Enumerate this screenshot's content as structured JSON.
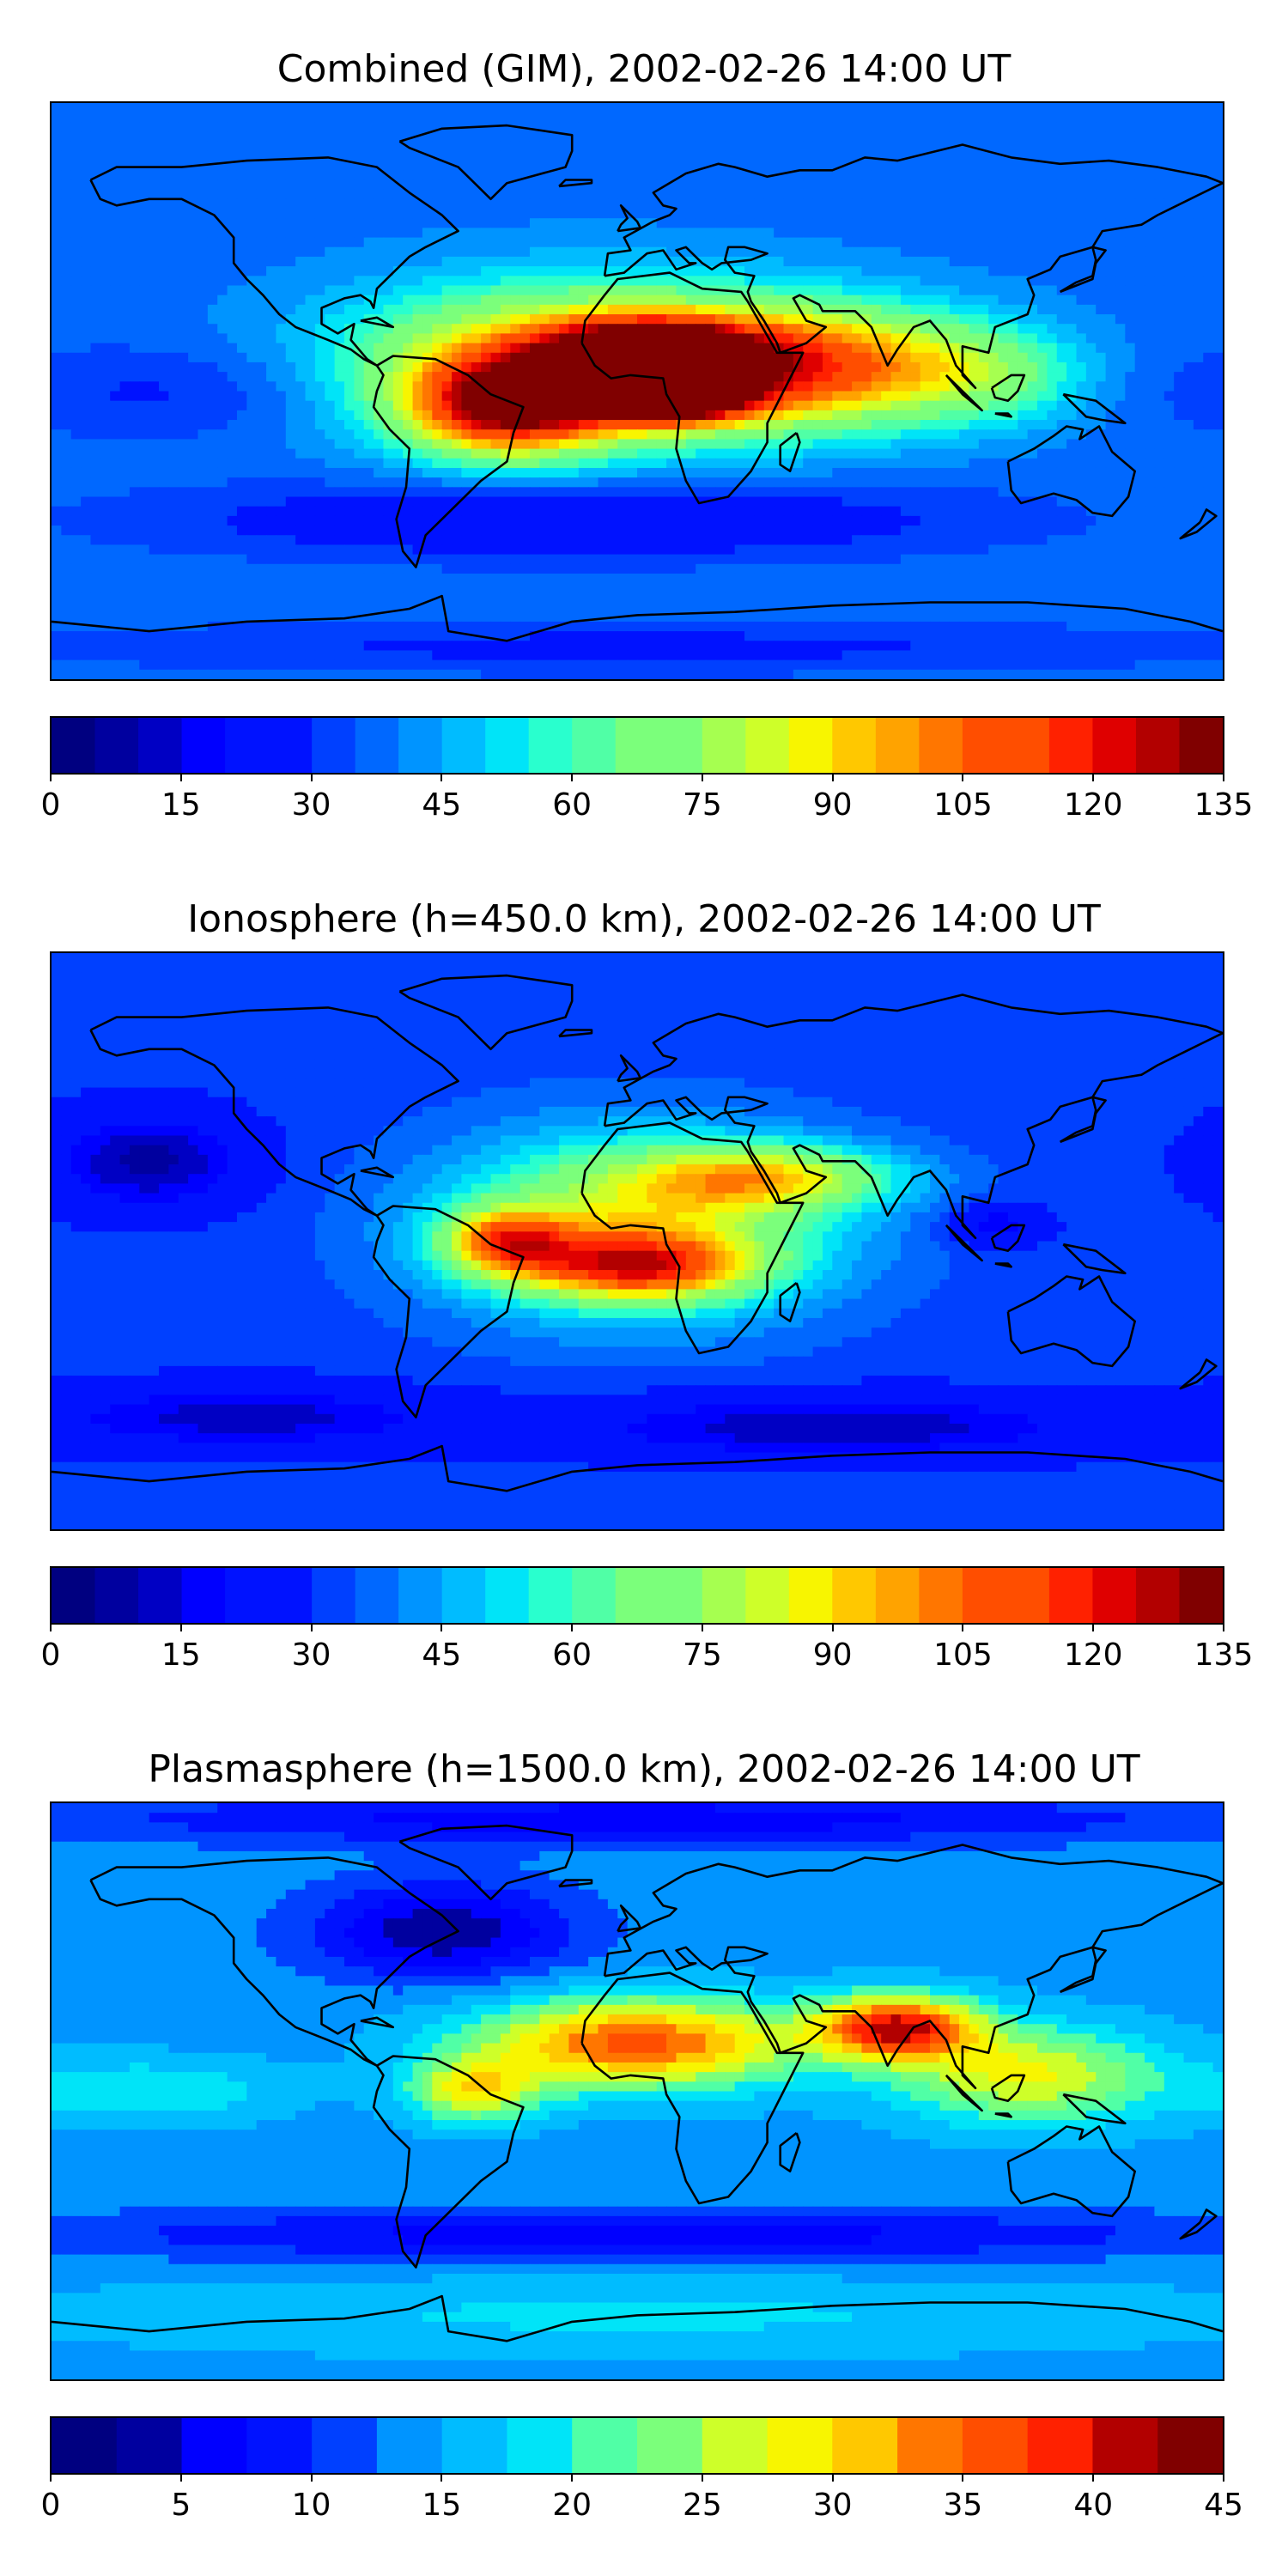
{
  "colors": {
    "jet": [
      "#000080",
      "#00009f",
      "#0000c4",
      "#0000ff",
      "#0012ff",
      "#0040ff",
      "#0068ff",
      "#0094ff",
      "#00bcff",
      "#00e4f8",
      "#29ffce",
      "#50ffa6",
      "#7bff7b",
      "#a6ff50",
      "#ceff29",
      "#f8f500",
      "#ffc800",
      "#ffa300",
      "#ff7600",
      "#ff4e00",
      "#ff2100",
      "#df0000",
      "#b20000",
      "#800000"
    ],
    "coastline": "#000000",
    "background": "#ffffff"
  },
  "chart_data": [
    {
      "type": "heatmap",
      "title": "Combined (GIM), 2002-02-26 14:00 UT",
      "colorbar": {
        "ticks": [
          "0",
          "15",
          "30",
          "45",
          "60",
          "75",
          "90",
          "105",
          "120",
          "135"
        ],
        "min": 0,
        "max": 135,
        "levels": 27
      },
      "background_level": 38,
      "features": [
        {
          "lon": -15,
          "lat": 8,
          "rx": 70,
          "ry": 24,
          "value": 105
        },
        {
          "lon": 5,
          "lat": 12,
          "rx": 30,
          "ry": 10,
          "value": 122
        },
        {
          "lon": 10,
          "lat": -2,
          "rx": 25,
          "ry": 8,
          "value": 120
        },
        {
          "lon": 60,
          "lat": 8,
          "rx": 45,
          "ry": 18,
          "value": 92
        },
        {
          "lon": -40,
          "lat": -5,
          "rx": 30,
          "ry": 15,
          "value": 108
        },
        {
          "lon": 110,
          "lat": 5,
          "rx": 30,
          "ry": 15,
          "value": 60
        },
        {
          "lon": -140,
          "lat": 0,
          "rx": 60,
          "ry": 15,
          "value": 28
        },
        {
          "lon": -20,
          "lat": -40,
          "rx": 120,
          "ry": 12,
          "value": 20
        },
        {
          "lon": 0,
          "lat": -80,
          "rx": 180,
          "ry": 8,
          "value": 28
        }
      ]
    },
    {
      "type": "heatmap",
      "title": "Ionosphere  (h=450.0 km), 2002-02-26 14:00 UT",
      "colorbar": {
        "ticks": [
          "0",
          "15",
          "30",
          "45",
          "60",
          "75",
          "90",
          "105",
          "120",
          "135"
        ],
        "min": 0,
        "max": 135,
        "levels": 27
      },
      "background_level": 32,
      "features": [
        {
          "lon": 0,
          "lat": 5,
          "rx": 60,
          "ry": 28,
          "value": 82
        },
        {
          "lon": 0,
          "lat": -8,
          "rx": 35,
          "ry": 10,
          "value": 88
        },
        {
          "lon": -40,
          "lat": 0,
          "rx": 20,
          "ry": 10,
          "value": 85
        },
        {
          "lon": 40,
          "lat": 20,
          "rx": 40,
          "ry": 10,
          "value": 75
        },
        {
          "lon": -150,
          "lat": 25,
          "rx": 30,
          "ry": 15,
          "value": 8
        },
        {
          "lon": 110,
          "lat": 5,
          "rx": 15,
          "ry": 6,
          "value": 14
        },
        {
          "lon": 60,
          "lat": -58,
          "rx": 80,
          "ry": 10,
          "value": 10
        },
        {
          "lon": -120,
          "lat": -55,
          "rx": 60,
          "ry": 10,
          "value": 12
        }
      ]
    },
    {
      "type": "heatmap",
      "title": "Plasmasphere (h=1500.0 km), 2002-02-26 14:00 UT",
      "colorbar": {
        "ticks": [
          "0",
          "5",
          "10",
          "15",
          "20",
          "25",
          "30",
          "35",
          "40",
          "45"
        ],
        "min": 0,
        "max": 45,
        "levels": 18
      },
      "background_level": 14,
      "features": [
        {
          "lon": 0,
          "lat": 15,
          "rx": 50,
          "ry": 14,
          "value": 36
        },
        {
          "lon": 80,
          "lat": 20,
          "rx": 25,
          "ry": 10,
          "value": 39
        },
        {
          "lon": 120,
          "lat": 5,
          "rx": 40,
          "ry": 15,
          "value": 28
        },
        {
          "lon": -50,
          "lat": 0,
          "rx": 20,
          "ry": 10,
          "value": 28
        },
        {
          "lon": -60,
          "lat": 50,
          "rx": 40,
          "ry": 15,
          "value": 3
        },
        {
          "lon": 0,
          "lat": 85,
          "rx": 180,
          "ry": 8,
          "value": 6
        },
        {
          "lon": 0,
          "lat": -45,
          "rx": 180,
          "ry": 8,
          "value": 6
        },
        {
          "lon": 0,
          "lat": -70,
          "rx": 180,
          "ry": 12,
          "value": 18
        },
        {
          "lon": -150,
          "lat": 0,
          "rx": 40,
          "ry": 10,
          "value": 20
        }
      ]
    }
  ]
}
